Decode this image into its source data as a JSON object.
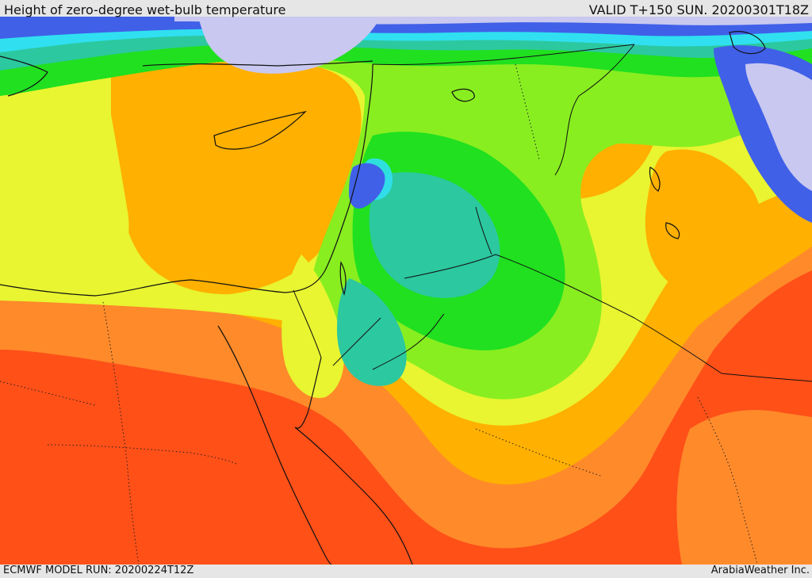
{
  "header": {
    "title": "Height of zero-degree wet-bulb temperature",
    "valid": "VALID T+150 SUN. 20200301T18Z"
  },
  "footer": {
    "model_run": "ECMWF MODEL RUN: 20200224T12Z",
    "brand": "ArabiaWeather Inc."
  },
  "colors": {
    "lavender": "#c8c8f0",
    "blue": "#4060e8",
    "cyan": "#30e0f0",
    "teal": "#2cc8a0",
    "green": "#20e020",
    "light_green": "#88ee20",
    "yellow": "#e8f530",
    "orange": "#ffb000",
    "dark_orange": "#ff8a2a",
    "red_orange": "#ff5018"
  }
}
